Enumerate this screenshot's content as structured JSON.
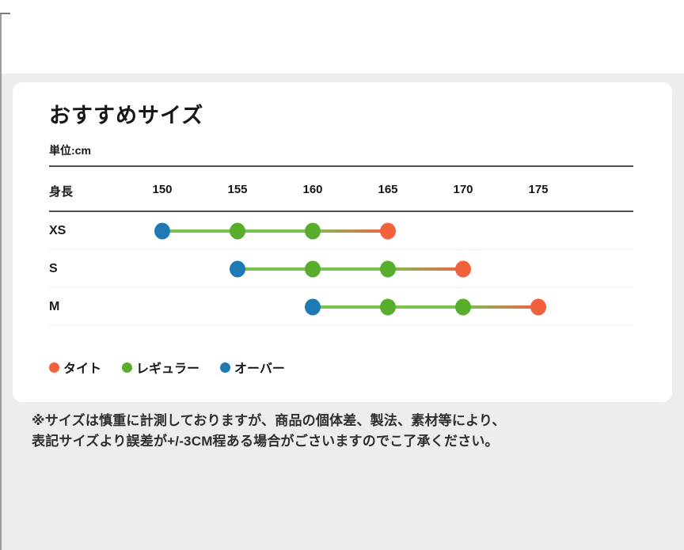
{
  "page": {
    "title": "おすすめサイズ",
    "unit_label": "単位:cm"
  },
  "chart_data": {
    "type": "scatter",
    "subtype": "size-fit-dot-range",
    "title": "おすすめサイズ",
    "unit": "cm",
    "x_label": "身長",
    "x_ticks": [
      150,
      155,
      160,
      165,
      170,
      175
    ],
    "x_range": [
      150,
      175
    ],
    "fit_labels": {
      "tight": "タイト",
      "regular": "レギュラー",
      "over": "オーバー"
    },
    "colors": {
      "tight": "#f3613c",
      "regular": "#57ae2b",
      "over": "#1d7ab3",
      "line": "#79c24f"
    },
    "rows": [
      {
        "label": "XS",
        "points": [
          {
            "value": 150,
            "fit": "over"
          },
          {
            "value": 155,
            "fit": "regular"
          },
          {
            "value": 160,
            "fit": "regular"
          },
          {
            "value": 165,
            "fit": "tight"
          }
        ]
      },
      {
        "label": "S",
        "points": [
          {
            "value": 155,
            "fit": "over"
          },
          {
            "value": 160,
            "fit": "regular"
          },
          {
            "value": 165,
            "fit": "regular"
          },
          {
            "value": 170,
            "fit": "tight"
          }
        ]
      },
      {
        "label": "M",
        "points": [
          {
            "value": 160,
            "fit": "over"
          },
          {
            "value": 165,
            "fit": "regular"
          },
          {
            "value": 170,
            "fit": "regular"
          },
          {
            "value": 175,
            "fit": "tight"
          }
        ]
      }
    ],
    "legend_position": "bottom-left"
  },
  "legend": {
    "items": [
      {
        "label": "タイト",
        "color": "#f3613c"
      },
      {
        "label": "レギュラー",
        "color": "#57ae2b"
      },
      {
        "label": "オーバー",
        "color": "#1d7ab3"
      }
    ]
  },
  "footnote": {
    "line1": "※サイズは慎重に計測しておりますが、商品の個体差、製法、素材等により、",
    "line2": "表記サイズより誤差が+/-3CM程ある場合がごさいますのでこ了承ください。"
  }
}
